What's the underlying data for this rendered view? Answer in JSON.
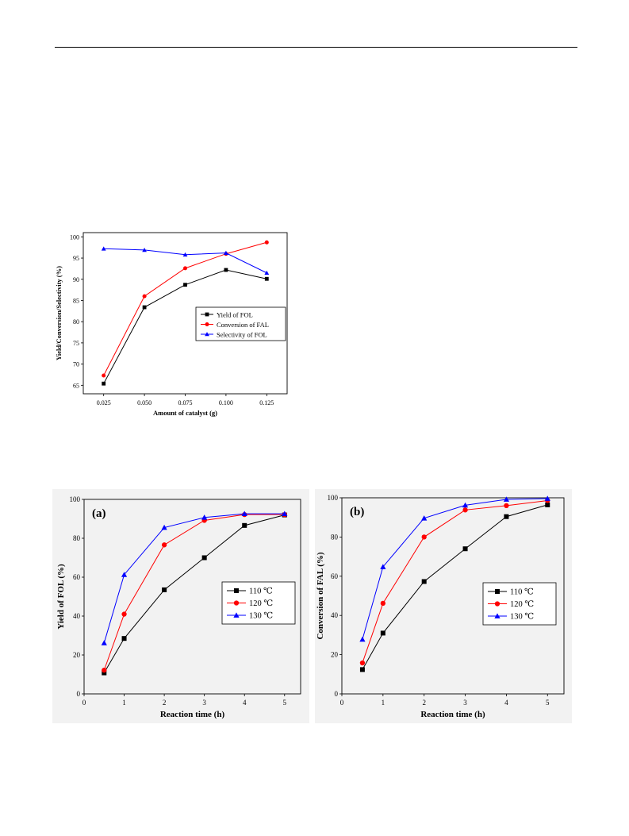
{
  "chart_data": [
    {
      "type": "line",
      "xlabel": "Amount of catalyst (g)",
      "ylabel": "Yield/Conversion/Selectivity (%)",
      "x": [
        0.025,
        0.05,
        0.075,
        0.1,
        0.125
      ],
      "xticks": [
        "0.025",
        "0.050",
        "0.075",
        "0.100",
        "0.125"
      ],
      "xlim": [
        0.0125,
        0.1375
      ],
      "ylim": [
        63,
        101
      ],
      "yticks": [
        65,
        70,
        75,
        80,
        85,
        90,
        95,
        100
      ],
      "legend_position": "center-right",
      "series": [
        {
          "name": "Yield of FOL",
          "color": "#000000",
          "marker": "square",
          "values": [
            65.4,
            83.4,
            88.7,
            92.2,
            90.1
          ]
        },
        {
          "name": "Conversion of FAL",
          "color": "#ff0000",
          "marker": "circle",
          "values": [
            67.3,
            86.0,
            92.6,
            96.0,
            98.7
          ]
        },
        {
          "name": "Selectivity of FOL",
          "color": "#0000ff",
          "marker": "triangle",
          "values": [
            97.2,
            96.9,
            95.8,
            96.2,
            91.5
          ]
        }
      ]
    },
    {
      "type": "line",
      "panel_label": "(a)",
      "xlabel": "Reaction time (h)",
      "ylabel": "Yield of FOL (%)",
      "x": [
        0.5,
        1,
        2,
        3,
        4,
        5
      ],
      "xticks": [
        "0",
        "1",
        "2",
        "3",
        "4",
        "5"
      ],
      "xlim": [
        0,
        5.4
      ],
      "ylim": [
        0,
        100
      ],
      "yticks": [
        0,
        20,
        40,
        60,
        80,
        100
      ],
      "legend_position": "center-right",
      "series": [
        {
          "name": "110 ℃",
          "color": "#000000",
          "marker": "square",
          "values": [
            10.8,
            28.5,
            53.5,
            70.0,
            86.6,
            92.0
          ]
        },
        {
          "name": "120 ℃",
          "color": "#ff0000",
          "marker": "circle",
          "values": [
            12.2,
            41.0,
            76.6,
            89.2,
            92.2,
            92.2
          ]
        },
        {
          "name": "130 ℃",
          "color": "#0000ff",
          "marker": "triangle",
          "values": [
            26.2,
            61.3,
            85.5,
            90.7,
            92.6,
            92.6
          ]
        }
      ]
    },
    {
      "type": "line",
      "panel_label": "(b)",
      "xlabel": "Reaction time (h)",
      "ylabel": "Conversion of FAL (%)",
      "x": [
        0.5,
        1,
        2,
        3,
        4,
        5
      ],
      "xticks": [
        "0",
        "1",
        "2",
        "3",
        "4",
        "5"
      ],
      "xlim": [
        0,
        5.4
      ],
      "ylim": [
        0,
        100
      ],
      "yticks": [
        0,
        20,
        40,
        60,
        80,
        100
      ],
      "legend_position": "center-right",
      "series": [
        {
          "name": "110 ℃",
          "color": "#000000",
          "marker": "square",
          "values": [
            12.4,
            31.0,
            57.3,
            74.0,
            90.4,
            96.4
          ]
        },
        {
          "name": "120 ℃",
          "color": "#ff0000",
          "marker": "circle",
          "values": [
            15.8,
            46.2,
            80.0,
            93.8,
            96.0,
            98.6
          ]
        },
        {
          "name": "130 ℃",
          "color": "#0000ff",
          "marker": "triangle",
          "values": [
            27.8,
            64.8,
            89.6,
            96.2,
            99.2,
            99.6
          ]
        }
      ]
    }
  ]
}
